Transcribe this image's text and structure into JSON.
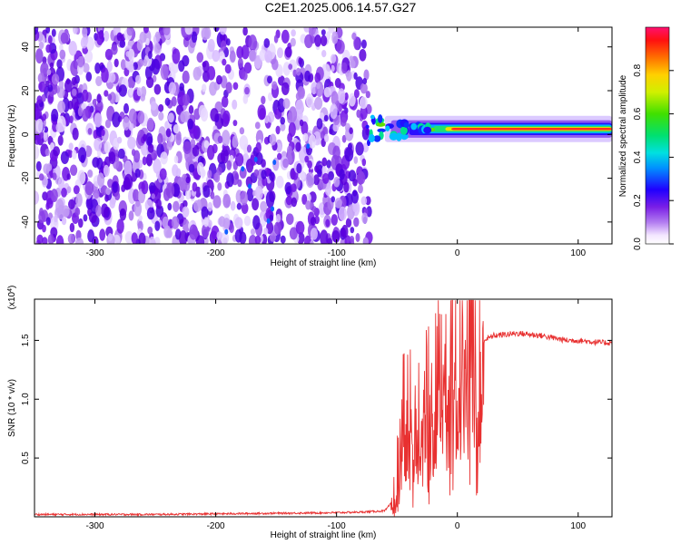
{
  "figure": {
    "title": "C2E1.2025.006.14.57.G27"
  },
  "chart_data": [
    {
      "type": "heatmap",
      "xlabel": "Height of straight line (km)",
      "ylabel": "Frequency (Hz)",
      "xlim": [
        -350,
        128
      ],
      "ylim": [
        -50,
        49
      ],
      "xticks": [
        -300,
        -200,
        -100,
        0,
        100
      ],
      "yticks": [
        -40,
        -20,
        0,
        20,
        40
      ],
      "grid": false,
      "colorbar": {
        "label": "Normalized spectral amplitude",
        "range": [
          0,
          1
        ],
        "ticks": [
          0.0,
          0.2,
          0.4,
          0.6,
          0.8
        ],
        "colormap": "rainbow (magenta-blue-cyan-green-yellow-red)"
      },
      "features": {
        "scattered_noise_region_km": [
          -350,
          -75
        ],
        "signal_band_center_hz": 2.5,
        "signal_band_start_km": -75
      }
    },
    {
      "type": "line",
      "xlabel": "Height of straight line (km)",
      "ylabel": "SNR (10 * v/v)",
      "yscale_label": "(x10",
      "yscale_exponent": "4",
      "y_scale_factor": 10000,
      "xlim": [
        -350,
        128
      ],
      "ylim": [
        0,
        1.85
      ],
      "xticks": [
        -300,
        -200,
        -100,
        0,
        100
      ],
      "yticks": [
        0.5,
        1.0,
        1.5
      ],
      "ytick_labels": [
        "0.5",
        "1.0",
        "1.5"
      ],
      "color": "#e83030",
      "series": [
        {
          "x": [
            -350,
            -300,
            -250,
            -200,
            -150,
            -100,
            -80,
            -60,
            -52,
            -48,
            -45,
            -42,
            -40,
            -38,
            -35,
            -30,
            -25,
            -20,
            -15,
            -10,
            -5,
            0,
            5,
            10,
            12,
            15,
            18,
            22,
            30,
            40,
            50,
            60,
            70,
            80,
            90,
            100,
            110,
            120,
            128
          ],
          "y": [
            0.02,
            0.02,
            0.02,
            0.025,
            0.03,
            0.035,
            0.04,
            0.05,
            0.15,
            0.5,
            0.9,
            0.7,
            1.35,
            0.7,
            0.9,
            0.8,
            1.1,
            0.95,
            1.25,
            1.0,
            1.35,
            1.2,
            1.4,
            1.35,
            1.8,
            1.45,
            1.4,
            1.5,
            1.54,
            1.55,
            1.56,
            1.55,
            1.54,
            1.52,
            1.5,
            1.5,
            1.49,
            1.48,
            1.48
          ]
        }
      ]
    }
  ]
}
